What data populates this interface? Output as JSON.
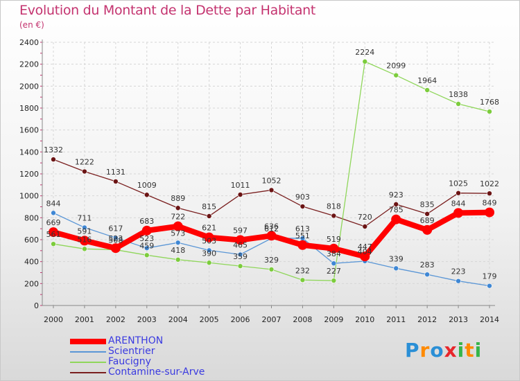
{
  "title": "Evolution du Montant de la Dette par Habitant",
  "subtitle": "(en €)",
  "logo": {
    "letters": [
      "P",
      "r",
      "o",
      "x",
      "i",
      "t",
      "i"
    ],
    "colors": [
      "#2a8fd6",
      "#ff8a00",
      "#2a8fd6",
      "#e8262b",
      "#36b54a",
      "#ff8a00",
      "#36b54a"
    ]
  },
  "chart_data": {
    "type": "line",
    "x": [
      "2000",
      "2001",
      "2002",
      "2003",
      "2004",
      "2005",
      "2006",
      "2007",
      "2008",
      "2009",
      "2010",
      "2011",
      "2012",
      "2013",
      "2014"
    ],
    "ylim": [
      0,
      2400
    ],
    "yticks": [
      "0",
      "200",
      "400",
      "600",
      "800",
      "1000",
      "1200",
      "1400",
      "1600",
      "1800",
      "2000",
      "2200",
      "2400"
    ],
    "grid": true,
    "legend_position": "bottom-left",
    "series": [
      {
        "name": "Contamine-sur-Arve",
        "color": "#7a1f1f",
        "values": [
          1332,
          1222,
          1131,
          1009,
          889,
          815,
          1011,
          1052,
          903,
          818,
          720,
          923,
          835,
          1025,
          1022
        ]
      },
      {
        "name": "Faucigny",
        "color": "#8fd65a",
        "values": [
          561,
          516,
          508,
          459,
          418,
          390,
          359,
          329,
          232,
          227,
          2224,
          2099,
          1964,
          1838,
          1768
        ]
      },
      {
        "name": "Scientrier",
        "color": "#5a96d6",
        "values": [
          844,
          711,
          617,
          523,
          573,
          503,
          465,
          612,
          613,
          384,
          404,
          339,
          283,
          223,
          179
        ]
      },
      {
        "name": "ARENTHON",
        "color": "#ff0000",
        "values": [
          669,
          591,
          523,
          683,
          722,
          621,
          597,
          636,
          551,
          519,
          447,
          785,
          689,
          844,
          849
        ]
      }
    ],
    "legend_order": [
      "ARENTHON",
      "Scientrier",
      "Faucigny",
      "Contamine-sur-Arve"
    ]
  }
}
